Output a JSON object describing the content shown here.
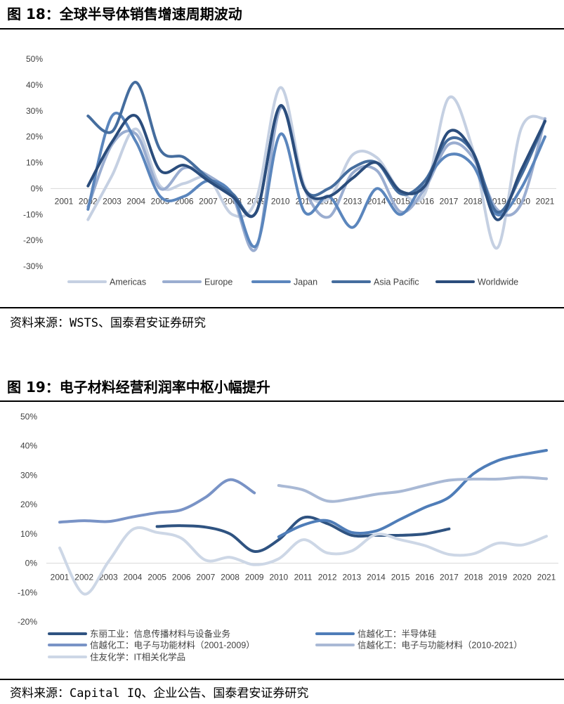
{
  "figures": [
    {
      "title": "图 18：全球半导体销售增速周期波动",
      "source": "资料来源：WSTS、国泰君安证券研究"
    },
    {
      "title": "图 19：电子材料经营利润率中枢小幅提升",
      "source": "资料来源：Capital IQ、企业公告、国泰君安证券研究"
    }
  ],
  "chart_data": [
    {
      "type": "line",
      "title": "全球半导体销售增速周期波动",
      "xlabel": "",
      "ylabel": "",
      "ylim": [
        -30,
        50
      ],
      "yticks": [
        -30,
        -20,
        -10,
        0,
        10,
        20,
        30,
        40,
        50
      ],
      "ytick_labels": [
        "-30%",
        "-20%",
        "-10%",
        "0%",
        "10%",
        "20%",
        "30%",
        "40%",
        "50%"
      ],
      "categories": [
        "2001",
        "2002",
        "2003",
        "2004",
        "2005",
        "2006",
        "2007",
        "2008",
        "2009",
        "2010",
        "2011",
        "2012",
        "2013",
        "2014",
        "2015",
        "2016",
        "2017",
        "2018",
        "2019",
        "2020",
        "2021"
      ],
      "legend_position": "bottom",
      "series": [
        {
          "name": "Americas",
          "color": "#c5d0e2",
          "values": [
            null,
            -12,
            5,
            23,
            1,
            2,
            4,
            -10,
            -4,
            39,
            1,
            -4,
            13,
            12,
            -1,
            -2,
            35,
            15,
            -23,
            23,
            27
          ]
        },
        {
          "name": "Europe",
          "color": "#9aadd0",
          "values": [
            null,
            -7,
            17,
            21,
            0,
            8,
            5,
            -3,
            -23,
            31,
            0,
            -11,
            6,
            7,
            -9,
            0,
            17,
            12,
            -8,
            -6,
            27
          ]
        },
        {
          "name": "Japan",
          "color": "#5b86bd",
          "values": [
            null,
            -8,
            28,
            18,
            -3,
            -3,
            3,
            -2,
            -22,
            21,
            -9,
            -3,
            -15,
            0,
            -10,
            3,
            13,
            9,
            -10,
            0,
            20
          ]
        },
        {
          "name": "Asia Pacific",
          "color": "#456d9e",
          "values": [
            null,
            28,
            22,
            41,
            15,
            12,
            4,
            -2,
            -9,
            32,
            0,
            0,
            8,
            10,
            -2,
            3,
            19,
            14,
            -9,
            5,
            26
          ]
        },
        {
          "name": "Worldwide",
          "color": "#2b4d7c",
          "values": [
            null,
            1,
            18,
            28,
            7,
            9,
            3,
            -3,
            -9,
            32,
            0,
            -3,
            4,
            10,
            -1,
            1,
            22,
            14,
            -12,
            7,
            26
          ]
        }
      ]
    },
    {
      "type": "line",
      "title": "电子材料经营利润率中枢小幅提升",
      "xlabel": "",
      "ylabel": "",
      "ylim": [
        -20,
        50
      ],
      "yticks": [
        -20,
        -10,
        0,
        10,
        20,
        30,
        40,
        50
      ],
      "ytick_labels": [
        "-20%",
        "-10%",
        "0%",
        "10%",
        "20%",
        "30%",
        "40%",
        "50%"
      ],
      "categories": [
        "2001",
        "2002",
        "2003",
        "2004",
        "2005",
        "2006",
        "2007",
        "2008",
        "2009",
        "2010",
        "2011",
        "2012",
        "2013",
        "2014",
        "2015",
        "2016",
        "2017",
        "2018",
        "2019",
        "2020",
        "2021"
      ],
      "legend_position": "bottom",
      "series": [
        {
          "name": "东丽工业：信息传播材料与设备业务",
          "color": "#2f5381",
          "values": [
            null,
            null,
            null,
            null,
            12.5,
            12.8,
            12.3,
            10,
            4,
            8,
            15.5,
            13.5,
            9.5,
            9.5,
            9.5,
            10,
            11.7,
            null,
            null,
            null,
            null
          ]
        },
        {
          "name": "信越化工：半导体硅",
          "color": "#4f7db8",
          "values": [
            null,
            null,
            null,
            null,
            null,
            null,
            null,
            null,
            null,
            9,
            13,
            14.5,
            10.5,
            11,
            15,
            19,
            22.5,
            30.5,
            35,
            37,
            38.5
          ]
        },
        {
          "name": "信越化工：电子与功能材料（2001-2009）",
          "color": "#7993c6",
          "values": [
            14,
            14.5,
            14.2,
            15.8,
            17.2,
            18.2,
            22.5,
            28.5,
            24,
            null,
            null,
            null,
            null,
            null,
            null,
            null,
            null,
            null,
            null,
            null,
            null
          ]
        },
        {
          "name": "信越化工：电子与功能材料（2010-2021）",
          "color": "#a9b9d5",
          "values": [
            null,
            null,
            null,
            null,
            null,
            null,
            null,
            null,
            null,
            26.5,
            25,
            21.2,
            22,
            23.5,
            24.5,
            26.5,
            28.3,
            28.7,
            28.7,
            29.3,
            28.8
          ]
        },
        {
          "name": "住友化学：IT相关化学品",
          "color": "#cdd7e6",
          "values": [
            5.2,
            -10.5,
            0.5,
            11.5,
            10.5,
            8.5,
            1,
            2,
            -0.5,
            1.5,
            8,
            3.5,
            4.2,
            9.8,
            8,
            6,
            3,
            3.2,
            6.8,
            6.2,
            9.2
          ]
        }
      ]
    }
  ]
}
